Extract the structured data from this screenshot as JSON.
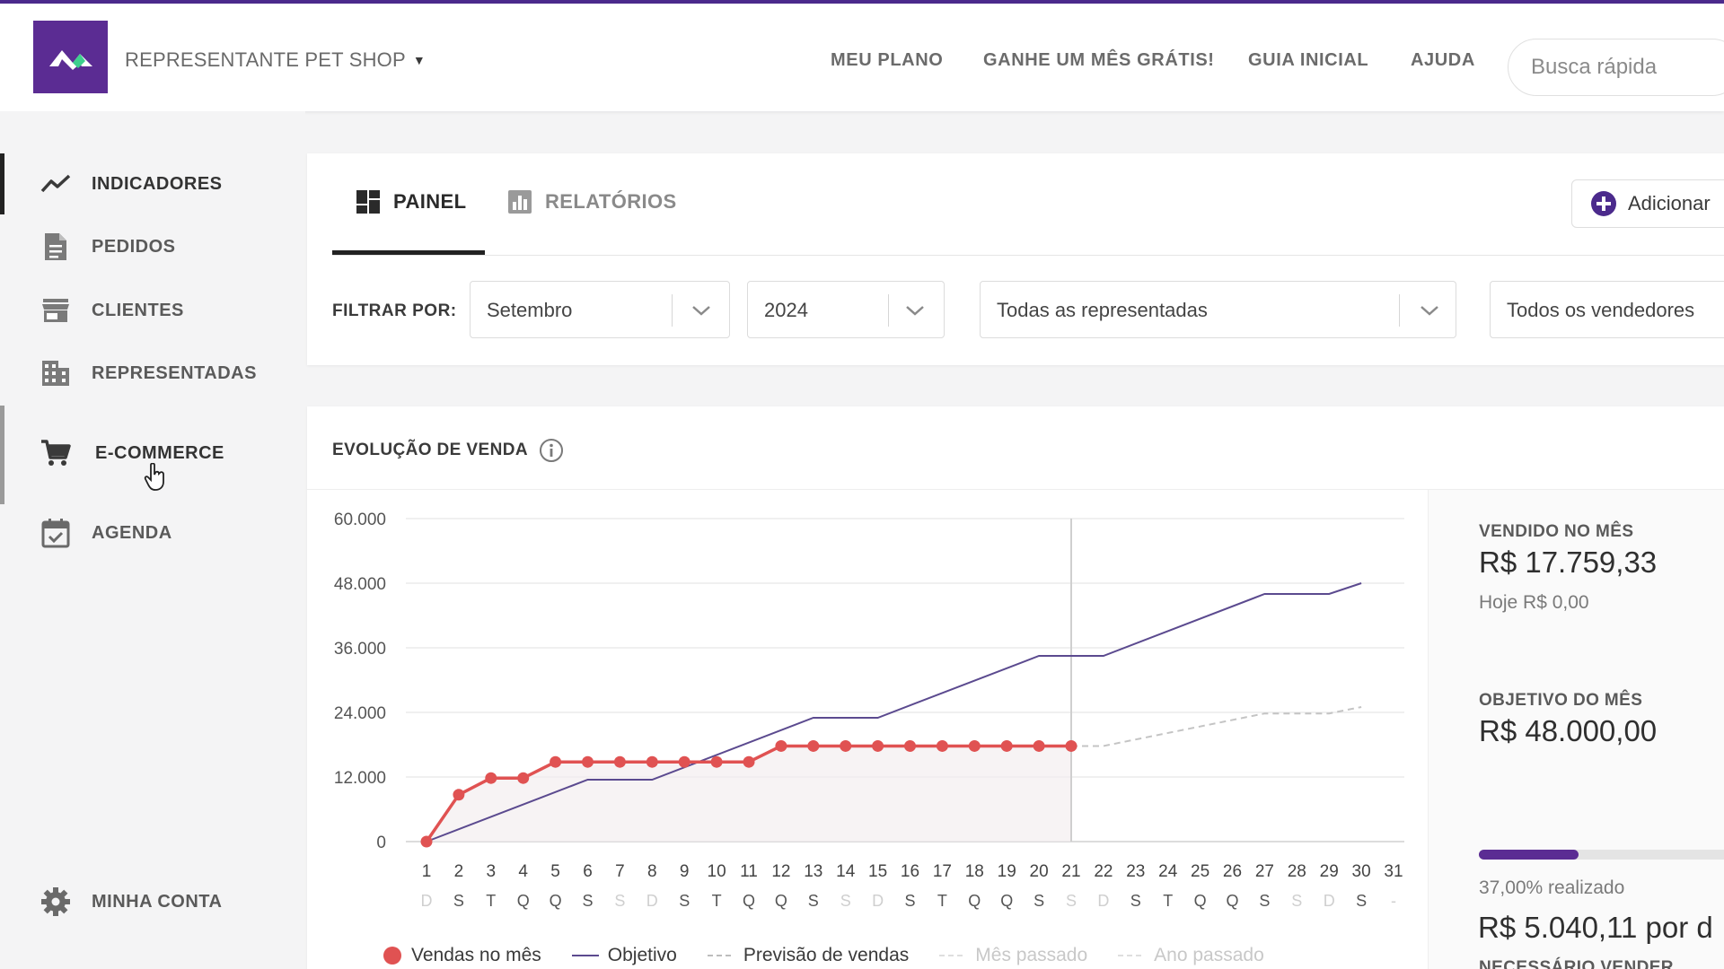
{
  "header": {
    "company": "REPRESENTANTE PET SHOP",
    "nav": [
      "MEU PLANO",
      "GANHE UM MÊS GRÁTIS!",
      "GUIA INICIAL",
      "AJUDA"
    ],
    "search_placeholder": "Busca rápida"
  },
  "sidebar": {
    "items": [
      {
        "label": "INDICADORES",
        "icon": "trend-line-icon"
      },
      {
        "label": "PEDIDOS",
        "icon": "document-icon"
      },
      {
        "label": "CLIENTES",
        "icon": "store-icon"
      },
      {
        "label": "REPRESENTADAS",
        "icon": "building-icon"
      },
      {
        "label": "E-COMMERCE",
        "icon": "cart-icon"
      },
      {
        "label": "AGENDA",
        "icon": "calendar-check-icon"
      }
    ],
    "account": {
      "label": "MINHA CONTA",
      "icon": "gear-icon"
    }
  },
  "tabs": {
    "panel": "PAINEL",
    "reports": "RELATÓRIOS",
    "add_button": "Adicionar"
  },
  "filters": {
    "label": "FILTRAR POR:",
    "month": "Setembro",
    "year": "2024",
    "represented": "Todas as representadas",
    "sellers": "Todos os vendedores"
  },
  "chart_card": {
    "title": "EVOLUÇÃO DE VENDA"
  },
  "stats": {
    "sold_label": "VENDIDO NO MÊS",
    "sold_value": "R$ 17.759,33",
    "today": "Hoje R$ 0,00",
    "goal_label": "OBJETIVO DO MÊS",
    "goal_value": "R$ 48.000,00",
    "progress_fraction": 0.37,
    "progress_text": "37,00% realizado",
    "needed_label": "NECESSÁRIO VENDER",
    "needed_value": "R$ 5.040,11 por d"
  },
  "colors": {
    "brand": "#5b2c93",
    "sales": "#e05252",
    "goal": "#5b4a8f",
    "forecast": "#bdbdbd"
  },
  "chart_data": {
    "type": "line",
    "x": [
      1,
      2,
      3,
      4,
      5,
      6,
      7,
      8,
      9,
      10,
      11,
      12,
      13,
      14,
      15,
      16,
      17,
      18,
      19,
      20,
      21,
      22,
      23,
      24,
      25,
      26,
      27,
      28,
      29,
      30,
      31
    ],
    "weekday_labels": [
      "D",
      "S",
      "T",
      "Q",
      "Q",
      "S",
      "S",
      "D",
      "S",
      "T",
      "Q",
      "Q",
      "S",
      "S",
      "D",
      "S",
      "T",
      "Q",
      "Q",
      "S",
      "S",
      "D",
      "S",
      "T",
      "Q",
      "Q",
      "S",
      "S",
      "D",
      "S",
      "-"
    ],
    "weekend_days": [
      1,
      7,
      8,
      14,
      15,
      21,
      22,
      28,
      29,
      31
    ],
    "yticks": [
      0,
      12000,
      24000,
      36000,
      48000,
      60000
    ],
    "ytick_labels": [
      "0",
      "12.000",
      "24.000",
      "36.000",
      "48.000",
      "60.000"
    ],
    "ylim": [
      0,
      60000
    ],
    "current_day": 21,
    "series": [
      {
        "name": "Vendas no mês",
        "x": [
          1,
          2,
          3,
          4,
          5,
          6,
          7,
          8,
          9,
          10,
          11,
          12,
          13,
          14,
          15,
          16,
          17,
          18,
          19,
          20,
          21
        ],
        "values": [
          0,
          8700,
          11800,
          11800,
          14800,
          14800,
          14800,
          14800,
          14800,
          14800,
          14800,
          17759,
          17759,
          17759,
          17759,
          17759,
          17759,
          17759,
          17759,
          17759,
          17759
        ]
      },
      {
        "name": "Objetivo",
        "x": [
          1,
          6,
          8,
          13,
          15,
          20,
          21,
          22,
          27,
          29,
          30
        ],
        "values": [
          0,
          11500,
          11500,
          23000,
          23000,
          34500,
          34500,
          34500,
          46000,
          46000,
          48000
        ]
      },
      {
        "name": "Previsão de vendas",
        "x": [
          21,
          22,
          27,
          29,
          30
        ],
        "values": [
          17759,
          17759,
          23800,
          23800,
          25000
        ]
      }
    ],
    "legend": [
      "Vendas no mês",
      "Objetivo",
      "Previsão de vendas",
      "Mês passado",
      "Ano passado"
    ]
  }
}
